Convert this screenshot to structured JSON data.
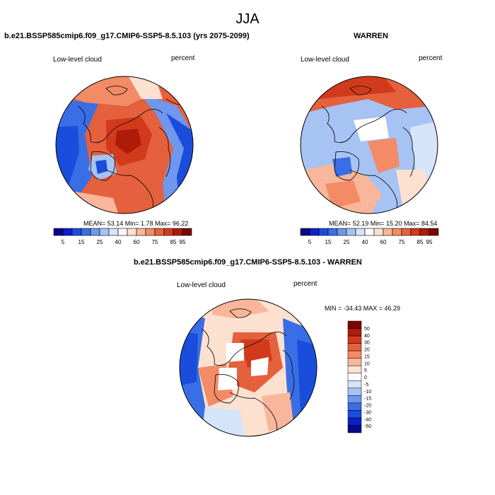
{
  "page": {
    "title": "JJA"
  },
  "panels": [
    {
      "title": "b.e21.BSSP585cmip6.f09_g17.CMIP6-SSP5-8.5.103 (yrs 2075-2099)",
      "left_label": "Low-level cloud",
      "right_label": "percent",
      "stats": "MEAN=  53.14  Min=   1.78  Max=  96.22"
    },
    {
      "title": "WARREN",
      "left_label": "Low-level cloud",
      "right_label": "percent",
      "stats": "MEAN=  52.19  Min=  15.20  Max=  84.54"
    },
    {
      "title": "b.e21.BSSP585cmip6.f09_g17.CMIP6-SSP5-8.5.103 - WARREN",
      "left_label": "Low-level cloud",
      "right_label": "percent",
      "stats": "MIN = -34.43 MAX =  46.29"
    }
  ],
  "colorbar_horizontal": {
    "colors": [
      "#08088c",
      "#0c1fcc",
      "#1a4ddc",
      "#3a6ee6",
      "#6f97ee",
      "#a6c3f4",
      "#d6e4fa",
      "#fbfbfb",
      "#fde1d0",
      "#f9b69a",
      "#f28b66",
      "#e5603c",
      "#d23a1c",
      "#b01a08",
      "#7e0303"
    ],
    "labels": [
      "5",
      "15",
      "25",
      "40",
      "60",
      "75",
      "85",
      "95"
    ]
  },
  "colorbar_vertical": {
    "colors": [
      "#08088c",
      "#0c1fcc",
      "#1a4ddc",
      "#3a6ee6",
      "#6f97ee",
      "#a6c3f4",
      "#d6e4fa",
      "#fbfbfb",
      "#fde1d0",
      "#f9b69a",
      "#f28b66",
      "#e5603c",
      "#d23a1c",
      "#b01a08",
      "#7e0303"
    ],
    "labels": [
      "50",
      "40",
      "30",
      "20",
      "15",
      "10",
      "5",
      "0",
      "-5",
      "-10",
      "-15",
      "-20",
      "-30",
      "-40",
      "-50"
    ]
  },
  "map_colors": {
    "deep_blue": "#1840d4",
    "blue": "#3a6ee6",
    "light_blue": "#a6c3f4",
    "pale_blue": "#d6e4fa",
    "white": "#ffffff",
    "pale_red": "#fde1d0",
    "salmon": "#f9b69a",
    "orange": "#f28b66",
    "red": "#e5603c",
    "dark_red": "#d23a1c",
    "maroon": "#b01a08",
    "coast": "#111111"
  }
}
